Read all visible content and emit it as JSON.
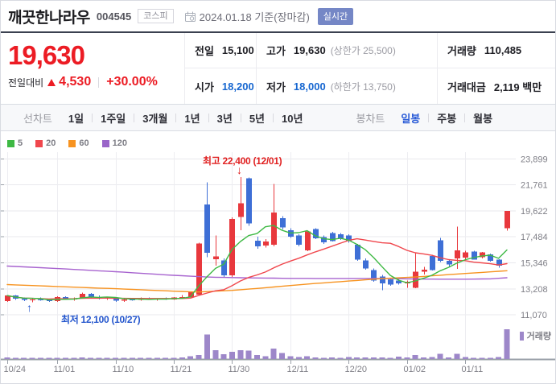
{
  "header": {
    "title": "깨끗한나라우",
    "code": "004545",
    "market_badge": "코스피",
    "date_text": "2024.01.18 기준(장마감)",
    "realtime_badge": "실시간"
  },
  "price": {
    "current": "19,630",
    "change_label": "전일대비",
    "change_value": "4,530",
    "change_percent": "+30.00%"
  },
  "summary": {
    "cells": [
      {
        "label": "전일",
        "value": "15,100",
        "sub": ""
      },
      {
        "label": "고가",
        "value": "19,630",
        "sub": "(상한가 25,500)"
      },
      {
        "label": "거래량",
        "value": "110,485",
        "sub": ""
      },
      {
        "label": "시가",
        "value": "18,200",
        "sub": ""
      },
      {
        "label": "저가",
        "value": "18,000",
        "sub": "(하한가 13,750)"
      },
      {
        "label": "거래대금",
        "value": "2,119 백만",
        "sub": ""
      }
    ]
  },
  "toolbar": {
    "line_label": "선차트",
    "line_options": [
      "1일",
      "1주일",
      "3개월",
      "1년",
      "3년",
      "5년",
      "10년"
    ],
    "candle_label": "봉차트",
    "candle_options": [
      "일봉",
      "주봉",
      "월봉"
    ],
    "selected": "일봉"
  },
  "legend": {
    "items": [
      {
        "label": "5",
        "color": "#3eb944"
      },
      {
        "label": "20",
        "color": "#f0474d"
      },
      {
        "label": "60",
        "color": "#f79320"
      },
      {
        "label": "120",
        "color": "#9a65c9"
      }
    ]
  },
  "volume_legend": "거래량",
  "annotations": {
    "high": {
      "text": "최고 22,400 (12/01)",
      "arrow": "↓",
      "value": 22400,
      "date": "12/01"
    },
    "low": {
      "text": "최저 12,100 (10/27)",
      "arrow": "↑",
      "value": 12100,
      "date": "10/27"
    }
  },
  "colors": {
    "up": "#e8383d",
    "down": "#3e6fd6",
    "volume": "#9d87c9",
    "grid": "#e9e9ed",
    "vgrid": "#ededf1",
    "axis": "#9aa0a8",
    "label": "#7f7f87",
    "ma5": "#3eb944",
    "ma20": "#f0474d",
    "ma60": "#f79320",
    "ma120": "#a763cf",
    "realtime_badge_bg": "#7587c6"
  },
  "chart_data": {
    "type": "candlestick+volume",
    "y_axis_labels": [
      "23,899",
      "21,761",
      "19,622",
      "17,484",
      "15,346",
      "13,208",
      "11,070"
    ],
    "y_values": [
      23899,
      21761,
      19622,
      17484,
      15346,
      13208,
      11070
    ],
    "x_ticks": [
      {
        "label": "10/24",
        "index": 0
      },
      {
        "label": "11/01",
        "index": 6
      },
      {
        "label": "11/10",
        "index": 13
      },
      {
        "label": "11/21",
        "index": 20
      },
      {
        "label": "11/30",
        "index": 27
      },
      {
        "label": "12/11",
        "index": 34
      },
      {
        "label": "12/20",
        "index": 41
      },
      {
        "label": "01/02",
        "index": 48
      },
      {
        "label": "01/11",
        "index": 55
      }
    ],
    "candles_format": [
      "date",
      "open",
      "high",
      "low",
      "close",
      "volume_rel"
    ],
    "candles": [
      [
        "10/24",
        12200,
        12700,
        12150,
        12650,
        0.05
      ],
      [
        "10/25",
        12650,
        12700,
        12300,
        12400,
        0.03
      ],
      [
        "10/26",
        12400,
        12500,
        12200,
        12300,
        0.03
      ],
      [
        "10/27",
        12300,
        12450,
        12100,
        12350,
        0.04
      ],
      [
        "10/30",
        12350,
        12500,
        12250,
        12300,
        0.02
      ],
      [
        "10/31",
        12300,
        12400,
        12150,
        12200,
        0.02
      ],
      [
        "11/01",
        12200,
        12600,
        12150,
        12550,
        0.04
      ],
      [
        "11/02",
        12550,
        12600,
        12300,
        12350,
        0.02
      ],
      [
        "11/03",
        12350,
        12500,
        12250,
        12450,
        0.03
      ],
      [
        "11/06",
        12450,
        12900,
        12400,
        12800,
        0.06
      ],
      [
        "11/07",
        12800,
        12850,
        12450,
        12550,
        0.04
      ],
      [
        "11/08",
        12550,
        12650,
        12350,
        12400,
        0.02
      ],
      [
        "11/09",
        12400,
        12550,
        12300,
        12500,
        0.02
      ],
      [
        "11/10",
        12500,
        12550,
        12150,
        12250,
        0.03
      ],
      [
        "11/13",
        12250,
        12400,
        12150,
        12350,
        0.02
      ],
      [
        "11/14",
        12350,
        12450,
        12250,
        12300,
        0.02
      ],
      [
        "11/15",
        12300,
        12500,
        12250,
        12450,
        0.03
      ],
      [
        "11/16",
        12450,
        12500,
        12300,
        12350,
        0.02
      ],
      [
        "11/17",
        12350,
        12450,
        12250,
        12400,
        0.02
      ],
      [
        "11/20",
        12400,
        12500,
        12300,
        12350,
        0.02
      ],
      [
        "11/21",
        12350,
        12550,
        12300,
        12500,
        0.04
      ],
      [
        "11/22",
        12500,
        12700,
        12400,
        12550,
        0.06
      ],
      [
        "11/23",
        12550,
        13000,
        12500,
        12950,
        0.1
      ],
      [
        "11/24",
        12740,
        17000,
        12700,
        16930,
        0.14
      ],
      [
        "11/27",
        20150,
        21950,
        15800,
        16160,
        0.82
      ],
      [
        "11/28",
        15650,
        17590,
        15100,
        15870,
        0.3
      ],
      [
        "11/29",
        15530,
        15700,
        14200,
        14310,
        0.16
      ],
      [
        "11/30",
        14310,
        19100,
        14200,
        18950,
        0.24
      ],
      [
        "12/01",
        19130,
        22400,
        18030,
        20230,
        0.3
      ],
      [
        "12/04",
        22300,
        22350,
        18400,
        18580,
        0.28
      ],
      [
        "12/05",
        17170,
        17500,
        16500,
        16710,
        0.13
      ],
      [
        "12/06",
        16760,
        17300,
        16600,
        17100,
        0.1
      ],
      [
        "12/07",
        16820,
        21820,
        16700,
        19470,
        0.35
      ],
      [
        "12/08",
        19030,
        19200,
        18100,
        18260,
        0.2
      ],
      [
        "12/11",
        18040,
        18200,
        17400,
        17490,
        0.1
      ],
      [
        "12/12",
        17600,
        17700,
        16700,
        16820,
        0.07
      ],
      [
        "12/13",
        16380,
        18000,
        16300,
        17920,
        0.09
      ],
      [
        "12/14",
        18140,
        18200,
        17300,
        17370,
        0.06
      ],
      [
        "12/15",
        17480,
        17600,
        16900,
        17040,
        0.04
      ],
      [
        "12/18",
        17810,
        17900,
        17100,
        17150,
        0.05
      ],
      [
        "12/19",
        17700,
        17800,
        17250,
        17370,
        0.03
      ],
      [
        "12/20",
        17590,
        17700,
        17000,
        17150,
        0.07
      ],
      [
        "12/21",
        16820,
        16900,
        15500,
        15600,
        0.05
      ],
      [
        "12/22",
        15530,
        15700,
        14800,
        14870,
        0.05
      ],
      [
        "12/26",
        14760,
        14900,
        13800,
        13880,
        0.06
      ],
      [
        "12/27",
        14210,
        14350,
        13110,
        13660,
        0.05
      ],
      [
        "12/28",
        13990,
        14100,
        13450,
        13550,
        0.04
      ],
      [
        "12/29",
        13900,
        14000,
        13550,
        13650,
        0.08
      ],
      [
        "01/02",
        13650,
        13900,
        13300,
        13800,
        0.06
      ],
      [
        "01/03",
        13300,
        16160,
        13250,
        14630,
        0.13
      ],
      [
        "01/04",
        14630,
        15000,
        14400,
        14800,
        0.06
      ],
      [
        "01/05",
        15910,
        16000,
        14720,
        14750,
        0.07
      ],
      [
        "01/08",
        17200,
        17400,
        15400,
        15510,
        0.18
      ],
      [
        "01/09",
        15510,
        15600,
        15000,
        15200,
        0.06
      ],
      [
        "01/10",
        15720,
        18330,
        14850,
        16380,
        0.18
      ],
      [
        "01/11",
        15770,
        16350,
        15600,
        16200,
        0.07
      ],
      [
        "01/12",
        16270,
        16350,
        15600,
        15600,
        0.04
      ],
      [
        "01/15",
        15800,
        16250,
        15700,
        16200,
        0.04
      ],
      [
        "01/16",
        16050,
        16100,
        15450,
        15500,
        0.03
      ],
      [
        "01/17",
        15600,
        15650,
        14950,
        15100,
        0.07
      ],
      [
        "01/18",
        18200,
        19630,
        18000,
        19630,
        1.0
      ]
    ],
    "moving_averages": {
      "ma5": {
        "window": 5
      },
      "ma20": {
        "window": 20
      },
      "ma60": {
        "points": [
          [
            0,
            13560
          ],
          [
            6,
            13400
          ],
          [
            13,
            13220
          ],
          [
            20,
            13020
          ],
          [
            23,
            12950
          ],
          [
            27,
            13080
          ],
          [
            31,
            13300
          ],
          [
            36,
            13600
          ],
          [
            41,
            13850
          ],
          [
            45,
            14050
          ],
          [
            49,
            14180
          ],
          [
            53,
            14380
          ],
          [
            57,
            14560
          ],
          [
            60,
            14700
          ]
        ]
      },
      "ma120": {
        "points": [
          [
            0,
            15080
          ],
          [
            6,
            14880
          ],
          [
            13,
            14620
          ],
          [
            20,
            14320
          ],
          [
            24,
            14180
          ],
          [
            28,
            14120
          ],
          [
            34,
            14070
          ],
          [
            41,
            14060
          ],
          [
            45,
            14060
          ],
          [
            50,
            14010
          ],
          [
            55,
            14000
          ],
          [
            58,
            14030
          ],
          [
            60,
            14120
          ]
        ]
      }
    }
  }
}
